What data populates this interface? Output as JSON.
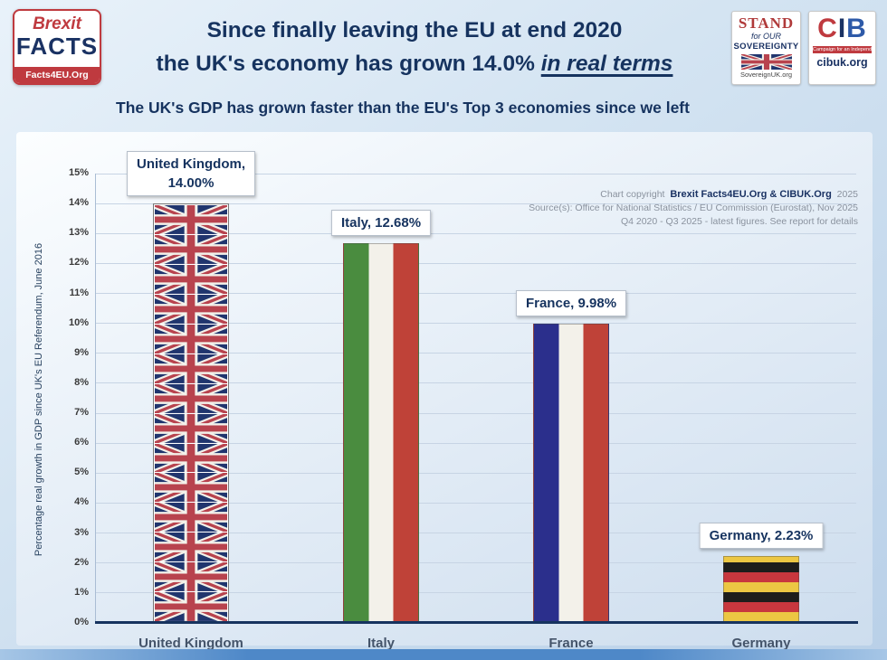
{
  "header": {
    "logo_brexit": {
      "word1": "Brexit",
      "word2": "FACTS",
      "site": "Facts4EU.Org"
    },
    "title_line1": "Since finally leaving the EU at end 2020",
    "title_line2_prefix": "the UK's economy has grown 14.0% ",
    "title_line2_emphasis": "in real terms",
    "logo_stand": {
      "line1": "STAND",
      "line2": "for OUR",
      "line3": "SOVEREIGNTY",
      "site": "SovereignUK.org"
    },
    "logo_cib": {
      "c": "C",
      "i": "I",
      "b": "B",
      "tagline": "Campaign for an Independent Britain",
      "site": "cibuk.org"
    },
    "subtitle": "The UK's GDP has grown faster than the EU's Top 3 economies since we left"
  },
  "annotations": {
    "copyright_prefix": "Chart copyright",
    "copyright_bold": "Brexit Facts4EU.Org & CIBUK.Org",
    "copyright_year": "2025",
    "source_line": "Source(s): Office for National Statistics  / EU Commission (Eurostat), Nov 2025",
    "period_line": "Q4 2020 - Q3 2025 - latest figures. See report for details"
  },
  "chart_data": {
    "type": "bar",
    "title": "Since finally leaving the EU at end 2020 the UK's economy has grown 14.0% in real terms",
    "subtitle": "The UK's GDP has grown faster than the EU's Top 3 economies since we left",
    "categories": [
      "United Kingdom",
      "Italy",
      "France",
      "Germany"
    ],
    "values": [
      14.0,
      12.68,
      9.98,
      2.23
    ],
    "bar_labels": [
      [
        "United Kingdom,",
        "14.00%"
      ],
      [
        "Italy, 12.68%"
      ],
      [
        "France, 9.98%"
      ],
      [
        "Germany, 2.23%"
      ]
    ],
    "bar_styles": [
      "uk-flag",
      "italy-flag",
      "france-flag",
      "germany-flag"
    ],
    "ylabel": "Percentage real growth in GDP since UK's EU Referendum, June 2016",
    "ylim": [
      0,
      15
    ],
    "ytick_step": 1,
    "ytick_suffix": "%",
    "grid": true,
    "legend": "none",
    "colors": {
      "uk_blue": "#20356e",
      "uk_red": "#b8434e",
      "italy_green": "#4a8c3f",
      "flag_white": "#f3f1ea",
      "flag_red": "#bf4238",
      "france_blue": "#2b2f8c",
      "germany_black": "#1d1d1b",
      "germany_red": "#c8373e",
      "germany_gold": "#ecc743",
      "title_navy": "#16335f"
    }
  }
}
